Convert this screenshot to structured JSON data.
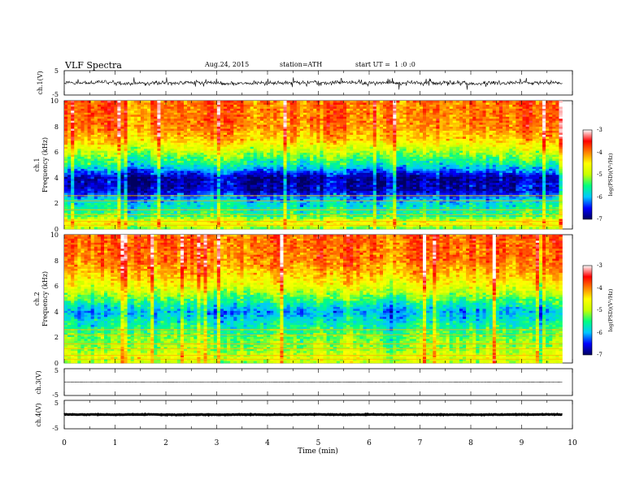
{
  "header": {
    "title": "VLF Spectra",
    "date": "Aug.24, 2015",
    "station": "station=ATH",
    "start": "start UT =  1 :0 :0"
  },
  "chart_data": [
    {
      "type": "line",
      "panel": "ch1-waveform",
      "ylabel": "ch.1(V)",
      "ylim": [
        -5,
        5
      ],
      "yticks": [
        "5",
        "-5"
      ],
      "xlim": [
        0,
        10
      ],
      "x_end": 9.8,
      "trace": {
        "mean": 0,
        "amplitude": 1.2,
        "color": "#000000"
      }
    },
    {
      "type": "heatmap",
      "panel": "ch1-spectrogram",
      "ylabel": "ch.1",
      "ylabel2": "Frequency (kHz)",
      "ylim": [
        0,
        10
      ],
      "yticks": [
        "0",
        "2",
        "4",
        "6",
        "8",
        "10"
      ],
      "xlim": [
        0,
        10
      ],
      "x_end": 9.8,
      "profile": [
        {
          "f": 0.0,
          "v": -5.2
        },
        {
          "f": 0.5,
          "v": -4.5
        },
        {
          "f": 1.0,
          "v": -5.4
        },
        {
          "f": 2.0,
          "v": -5.8
        },
        {
          "f": 2.5,
          "v": -6.2
        },
        {
          "f": 3.0,
          "v": -6.7
        },
        {
          "f": 4.0,
          "v": -6.8
        },
        {
          "f": 5.0,
          "v": -5.7
        },
        {
          "f": 6.0,
          "v": -5.0
        },
        {
          "f": 7.0,
          "v": -4.3
        },
        {
          "f": 8.0,
          "v": -4.0
        },
        {
          "f": 10.0,
          "v": -3.9
        }
      ]
    },
    {
      "type": "heatmap",
      "panel": "ch2-spectrogram",
      "ylabel": "ch.2",
      "ylabel2": "Frequency (kHz)",
      "ylim": [
        0,
        10
      ],
      "yticks": [
        "0",
        "2",
        "4",
        "6",
        "8",
        "10"
      ],
      "xlim": [
        0,
        10
      ],
      "x_end": 9.8,
      "profile": [
        {
          "f": 0.0,
          "v": -5.0
        },
        {
          "f": 0.5,
          "v": -4.8
        },
        {
          "f": 1.0,
          "v": -5.1
        },
        {
          "f": 2.0,
          "v": -5.3
        },
        {
          "f": 3.0,
          "v": -5.7
        },
        {
          "f": 4.0,
          "v": -6.1
        },
        {
          "f": 5.0,
          "v": -5.4
        },
        {
          "f": 6.0,
          "v": -4.7
        },
        {
          "f": 7.0,
          "v": -4.3
        },
        {
          "f": 8.0,
          "v": -4.0
        },
        {
          "f": 10.0,
          "v": -3.9
        }
      ]
    },
    {
      "type": "line",
      "panel": "ch3-waveform",
      "ylabel": "ch.3(V)",
      "ylim": [
        -5,
        5
      ],
      "yticks": [
        "5",
        "-5"
      ],
      "xlim": [
        0,
        10
      ],
      "x_end": 9.8,
      "trace": {
        "mean": 0,
        "amplitude": 0.05,
        "color": "#000000"
      }
    },
    {
      "type": "line",
      "panel": "ch4-waveform",
      "ylabel": "ch.4(V)",
      "ylim": [
        -5,
        5
      ],
      "yticks": [
        "5",
        "-5"
      ],
      "xlim": [
        0,
        10
      ],
      "x_end": 9.8,
      "trace": {
        "mean": 0,
        "amplitude": 0.3,
        "color": "#000000"
      }
    }
  ],
  "x_axis": {
    "label": "Time (min)",
    "ticks": [
      "0",
      "1",
      "2",
      "3",
      "4",
      "5",
      "6",
      "7",
      "8",
      "9",
      "10"
    ]
  },
  "colorbar": {
    "label": "log(PSD)(V²/Hz)",
    "min": -7,
    "max": -3,
    "ticks": [
      "-3",
      "-4",
      "-5",
      "-6",
      "-7"
    ],
    "colors": [
      "#000060",
      "#0000ff",
      "#00c8ff",
      "#00ff80",
      "#c8ff00",
      "#ffff00",
      "#ff8000",
      "#ff0000",
      "#ffffff"
    ]
  }
}
